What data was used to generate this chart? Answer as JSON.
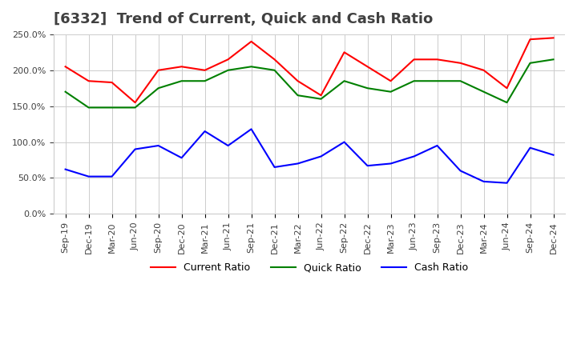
{
  "title": "[6332]  Trend of Current, Quick and Cash Ratio",
  "x_labels": [
    "Sep-19",
    "Dec-19",
    "Mar-20",
    "Jun-20",
    "Sep-20",
    "Dec-20",
    "Mar-21",
    "Jun-21",
    "Sep-21",
    "Dec-21",
    "Mar-22",
    "Jun-22",
    "Sep-22",
    "Dec-22",
    "Mar-23",
    "Jun-23",
    "Sep-23",
    "Dec-23",
    "Mar-24",
    "Jun-24",
    "Sep-24",
    "Dec-24"
  ],
  "current_ratio": [
    205,
    185,
    183,
    155,
    200,
    205,
    200,
    215,
    240,
    215,
    185,
    165,
    225,
    205,
    185,
    215,
    215,
    210,
    200,
    175,
    243,
    245
  ],
  "quick_ratio": [
    170,
    148,
    148,
    148,
    175,
    185,
    185,
    200,
    205,
    200,
    165,
    160,
    185,
    175,
    170,
    185,
    185,
    185,
    170,
    155,
    210,
    215
  ],
  "cash_ratio": [
    62,
    52,
    52,
    90,
    95,
    78,
    115,
    95,
    118,
    65,
    70,
    80,
    100,
    67,
    70,
    80,
    95,
    60,
    45,
    43,
    92,
    82
  ],
  "ylim": [
    0,
    250
  ],
  "yticks": [
    0,
    50,
    100,
    150,
    200,
    250
  ],
  "current_color": "#ff0000",
  "quick_color": "#008000",
  "cash_color": "#0000ff",
  "background_color": "#ffffff",
  "grid_color": "#cccccc",
  "title_color": "#404040",
  "legend_labels": [
    "Current Ratio",
    "Quick Ratio",
    "Cash Ratio"
  ]
}
